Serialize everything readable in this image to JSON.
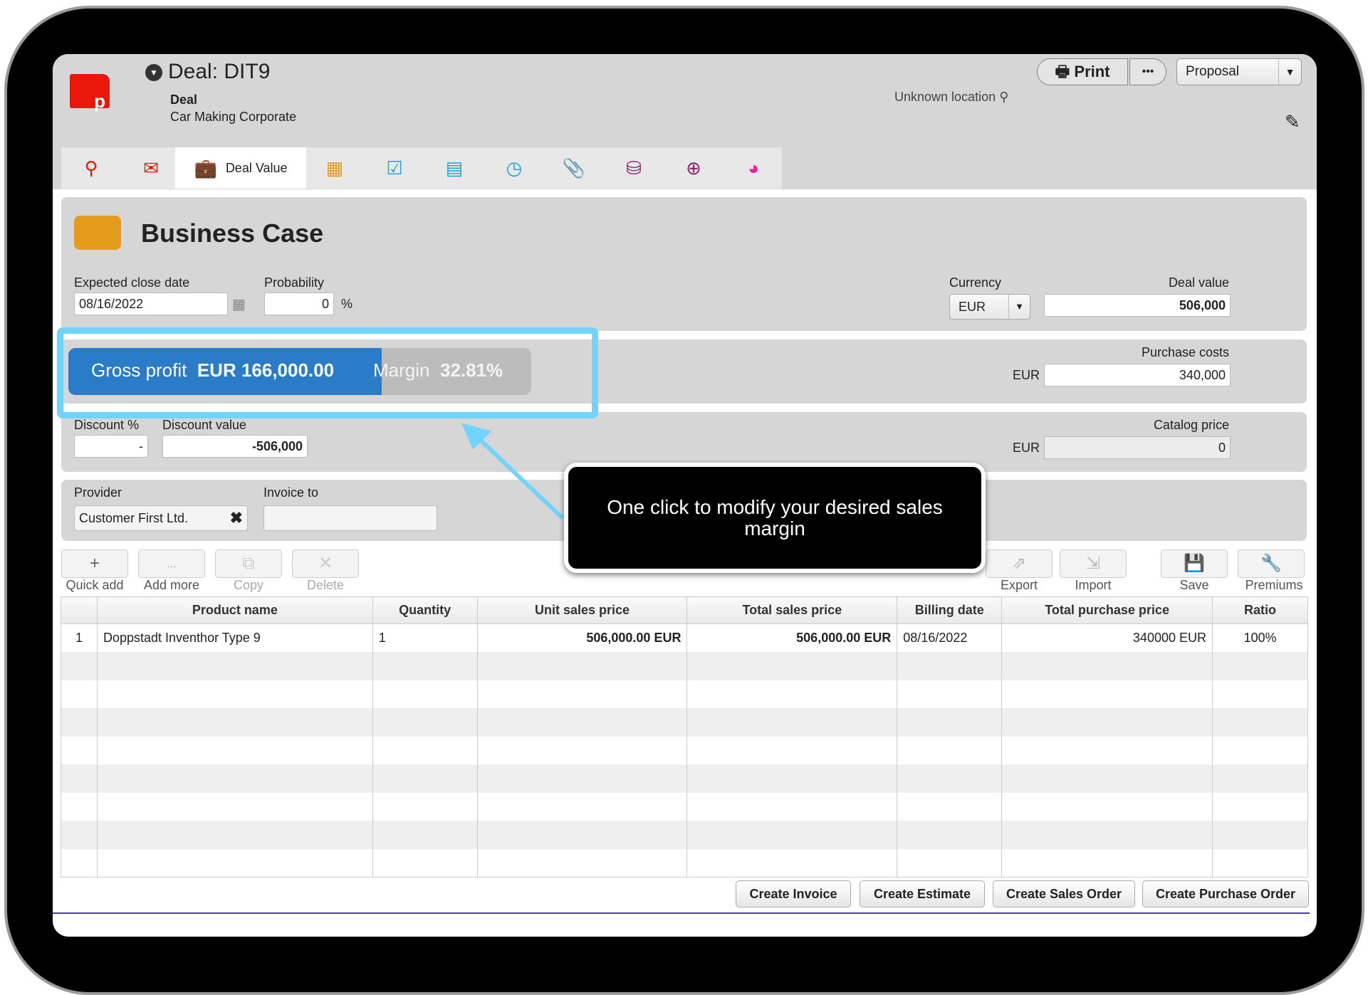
{
  "header": {
    "title": "Deal: DIT9",
    "type": "Deal",
    "company": "Car Making Corporate",
    "location": "Unknown location",
    "print_label": "Print",
    "more_label": "•••",
    "stage": "Proposal"
  },
  "tabs": [
    {
      "icon": "pin-icon"
    },
    {
      "icon": "mail-icon"
    },
    {
      "icon": "briefcase-icon",
      "label": "Deal Value",
      "active": true
    },
    {
      "icon": "calculator-icon"
    },
    {
      "icon": "checkbox-icon"
    },
    {
      "icon": "calendar-icon"
    },
    {
      "icon": "clock-search-icon"
    },
    {
      "icon": "paperclip-icon"
    },
    {
      "icon": "coins-icon"
    },
    {
      "icon": "add-money-icon"
    },
    {
      "icon": "pie-chart-icon"
    }
  ],
  "business_case": {
    "title": "Business Case",
    "expected_close_date_label": "Expected close date",
    "expected_close_date": "08/16/2022",
    "probability_label": "Probability",
    "probability": "0",
    "percent": "%",
    "currency_label": "Currency",
    "currency": "EUR",
    "deal_value_label": "Deal value",
    "deal_value": "506,000"
  },
  "profit": {
    "gross_label": "Gross profit",
    "gross_value": "EUR 166,000.00",
    "margin_label": "Margin",
    "margin_value": "32.81%",
    "purchase_costs_label": "Purchase costs",
    "purchase_currency": "EUR",
    "purchase_costs": "340,000"
  },
  "discount": {
    "pct_label": "Discount %",
    "pct_value": "-",
    "value_label": "Discount value",
    "value": "-506,000",
    "catalog_label": "Catalog price",
    "catalog_currency": "EUR",
    "catalog_value": "0"
  },
  "provider": {
    "label": "Provider",
    "value": "Customer First Ltd.",
    "invoice_label": "Invoice to",
    "invoice_value": ""
  },
  "toolbar": {
    "quick_add": "Quick add",
    "add_more": "Add more",
    "copy": "Copy",
    "delete": "Delete",
    "export": "Export",
    "import": "Import",
    "save": "Save",
    "premiums": "Premiums"
  },
  "table": {
    "headers": [
      "",
      "Product name",
      "Quantity",
      "Unit sales price",
      "Total sales price",
      "Billing date",
      "Total purchase price",
      "Ratio"
    ],
    "rows": [
      [
        "1",
        "Doppstadt Inventhor Type 9",
        "1",
        "506,000.00 EUR",
        "506,000.00 EUR",
        "08/16/2022",
        "340000 EUR",
        "100%"
      ]
    ]
  },
  "actions": {
    "invoice": "Create Invoice",
    "estimate": "Create Estimate",
    "sales_order": "Create Sales Order",
    "purchase_order": "Create Purchase Order"
  },
  "callout": {
    "text": "One click to modify your desired sales margin"
  },
  "colors": {
    "accent": "#2a7bc8",
    "highlight": "#72d4fc",
    "logo": "#e8170a"
  }
}
